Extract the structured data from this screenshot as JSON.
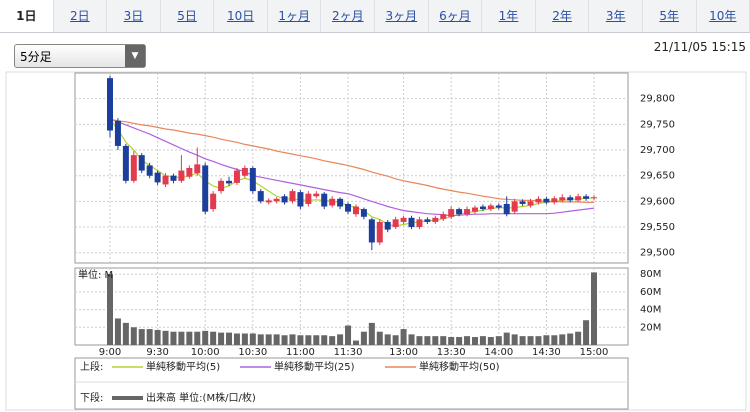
{
  "tabs": [
    {
      "label": "1日"
    },
    {
      "label": "2日"
    },
    {
      "label": "3日"
    },
    {
      "label": "5日"
    },
    {
      "label": "10日"
    },
    {
      "label": "1ヶ月"
    },
    {
      "label": "2ヶ月"
    },
    {
      "label": "3ヶ月"
    },
    {
      "label": "6ヶ月"
    },
    {
      "label": "1年"
    },
    {
      "label": "2年"
    },
    {
      "label": "3年"
    },
    {
      "label": "5年"
    },
    {
      "label": "10年"
    }
  ],
  "interval_select": "5分足",
  "timestamp": "21/11/05 15:15",
  "chart_data": [
    {
      "type": "candlestick",
      "legend_label": "上段:",
      "categories": [
        "9:00",
        null,
        null,
        null,
        null,
        null,
        "9:30",
        null,
        null,
        null,
        null,
        null,
        "10:00",
        null,
        null,
        null,
        null,
        null,
        "10:30",
        null,
        null,
        null,
        null,
        null,
        "11:00",
        null,
        null,
        null,
        null,
        null,
        "11:30",
        null,
        null,
        null,
        null,
        null,
        null,
        "13:00",
        null,
        null,
        null,
        null,
        null,
        "13:30",
        null,
        null,
        null,
        null,
        null,
        "14:00",
        null,
        null,
        null,
        null,
        null,
        "14:30",
        null,
        null,
        null,
        null,
        null,
        "15:00"
      ],
      "open": [
        29840,
        29757,
        29708,
        29640,
        29690,
        29670,
        29656,
        29633,
        29650,
        29640,
        29648,
        29655,
        29670,
        29585,
        29620,
        29640,
        29636,
        29650,
        29665,
        29620,
        29598,
        29600,
        29610,
        29600,
        29618,
        29595,
        29610,
        29615,
        29592,
        29605,
        29595,
        29575,
        29585,
        29565,
        29520,
        29560,
        29550,
        29560,
        29568,
        29550,
        29565,
        29560,
        29566,
        29570,
        29585,
        29575,
        29580,
        29590,
        29585,
        29592,
        29595,
        29580,
        29600,
        29592,
        29598,
        29605,
        29598,
        29602,
        29608,
        29602,
        29610,
        29606
      ],
      "high": [
        29845,
        29762,
        29712,
        29698,
        29694,
        29675,
        29660,
        29655,
        29654,
        29690,
        29670,
        29705,
        29675,
        29620,
        29645,
        29648,
        29665,
        29670,
        29668,
        29624,
        29606,
        29608,
        29614,
        29624,
        29622,
        29620,
        29620,
        29618,
        29610,
        29608,
        29598,
        29594,
        29588,
        29568,
        29565,
        29564,
        29570,
        29572,
        29572,
        29570,
        29569,
        29572,
        29580,
        29590,
        29588,
        29590,
        29592,
        29594,
        29596,
        29596,
        29610,
        29605,
        29604,
        29605,
        29610,
        29609,
        29610,
        29614,
        29612,
        29615,
        29614,
        29612
      ],
      "low": [
        29725,
        29700,
        29635,
        29636,
        29655,
        29645,
        29632,
        29628,
        29635,
        29636,
        29644,
        29650,
        29575,
        29580,
        29615,
        29630,
        29632,
        29645,
        29615,
        29596,
        29594,
        29596,
        29594,
        29596,
        29585,
        29590,
        29606,
        29585,
        29588,
        29585,
        29575,
        29570,
        29565,
        29505,
        29515,
        29540,
        29546,
        29556,
        29546,
        29546,
        29556,
        29556,
        29562,
        29566,
        29571,
        29571,
        29576,
        29581,
        29581,
        29584,
        29571,
        29576,
        29591,
        29588,
        29594,
        29594,
        29594,
        29598,
        29598,
        29598,
        29601,
        29602
      ],
      "close": [
        29738,
        29708,
        29640,
        29690,
        29660,
        29650,
        29637,
        29650,
        29640,
        29660,
        29665,
        29672,
        29580,
        29615,
        29640,
        29635,
        29660,
        29665,
        29620,
        29600,
        29602,
        29605,
        29598,
        29620,
        29590,
        29615,
        29615,
        29590,
        29605,
        29590,
        29580,
        29590,
        29570,
        29520,
        29560,
        29545,
        29565,
        29568,
        29550,
        29565,
        29560,
        29568,
        29575,
        29585,
        29575,
        29585,
        29588,
        29585,
        29592,
        29588,
        29575,
        29600,
        29595,
        29600,
        29605,
        29598,
        29606,
        29608,
        29602,
        29610,
        29605,
        29608
      ],
      "up_color": "#e23b4e",
      "down_color": "#1c3f9c",
      "series": [
        {
          "name": "単純移動平均(5)",
          "color": "#b5d334",
          "values": [
            29760,
            29740,
            29715,
            29700,
            29680,
            29670,
            29660,
            29650,
            29648,
            29646,
            29650,
            29655,
            29640,
            29630,
            29625,
            29630,
            29640,
            29645,
            29640,
            29630,
            29620,
            29610,
            29605,
            29605,
            29603,
            29602,
            29603,
            29602,
            29600,
            29598,
            29592,
            29588,
            29582,
            29570,
            29565,
            29555,
            29552,
            29555,
            29558,
            29560,
            29562,
            29563,
            29566,
            29570,
            29575,
            29578,
            29580,
            29583,
            29586,
            29588,
            29587,
            29588,
            29590,
            29592,
            29596,
            29598,
            29600,
            29602,
            29604,
            29605,
            29606,
            29607
          ]
        },
        {
          "name": "単純移動平均(25)",
          "color": "#b060e0",
          "values": [
            29760,
            29755,
            29749,
            29743,
            29737,
            29731,
            29724,
            29717,
            29710,
            29703,
            29696,
            29690,
            29683,
            29678,
            29672,
            29667,
            29662,
            29658,
            29650,
            29647,
            29644,
            29641,
            29638,
            29635,
            29632,
            29629,
            29626,
            29623,
            29620,
            29617,
            29615,
            29610,
            29605,
            29600,
            29595,
            29590,
            29586,
            29582,
            29580,
            29578,
            29576,
            29575,
            29574,
            29572,
            29573,
            29574,
            29575,
            29575,
            29576,
            29576,
            29576,
            29576,
            29576,
            29576,
            29576,
            29576,
            29577,
            29579,
            29581,
            29583,
            29585,
            29587
          ]
        },
        {
          "name": "単純移動平均(50)",
          "color": "#e8875a",
          "values": [
            29760,
            29757,
            29755,
            29752,
            29749,
            29747,
            29744,
            29741,
            29739,
            29736,
            29733,
            29731,
            29728,
            29725,
            29721,
            29718,
            29715,
            29711,
            29708,
            29705,
            29702,
            29698,
            29695,
            29692,
            29689,
            29686,
            29683,
            29679,
            29676,
            29673,
            29670,
            29666,
            29662,
            29657,
            29653,
            29649,
            29644,
            29640,
            29637,
            29634,
            29631,
            29627,
            29624,
            29621,
            29618,
            29616,
            29613,
            29610,
            29608,
            29605,
            29604,
            29603,
            29602,
            29602,
            29601,
            29600,
            29600,
            29599,
            29599,
            29599,
            29598,
            29598
          ]
        }
      ],
      "ylim": [
        29480,
        29850
      ],
      "yticks": [
        {
          "value": 29500,
          "label": "29,500"
        },
        {
          "value": 29550,
          "label": "29,550"
        },
        {
          "value": 29600,
          "label": "29,600"
        },
        {
          "value": 29650,
          "label": "29,650"
        },
        {
          "value": 29700,
          "label": "29,700"
        },
        {
          "value": 29750,
          "label": "29,750"
        },
        {
          "value": 29800,
          "label": "29,800"
        }
      ],
      "grid": true
    },
    {
      "type": "bar",
      "legend_label": "下段:",
      "unit_label": "単位: M",
      "series": [
        {
          "name": "出来高 単位:(M株/口/枚)",
          "color": "#666666",
          "values": [
            80,
            30,
            25,
            20,
            18,
            18,
            17,
            16,
            15,
            15,
            15,
            15,
            16,
            15,
            14,
            14,
            13,
            13,
            13,
            12,
            12,
            12,
            11,
            12,
            11,
            11,
            11,
            11,
            10,
            12,
            22,
            5,
            15,
            25,
            15,
            12,
            11,
            18,
            12,
            10,
            10,
            10,
            10,
            9,
            9,
            10,
            9,
            10,
            9,
            10,
            14,
            12,
            10,
            10,
            10,
            11,
            11,
            12,
            13,
            15,
            28,
            82
          ]
        }
      ],
      "ylim": [
        0,
        87
      ],
      "yticks": [
        {
          "value": 20,
          "label": "20M"
        },
        {
          "value": 40,
          "label": "40M"
        },
        {
          "value": 60,
          "label": "60M"
        },
        {
          "value": 80,
          "label": "80M"
        }
      ],
      "grid": true
    }
  ]
}
